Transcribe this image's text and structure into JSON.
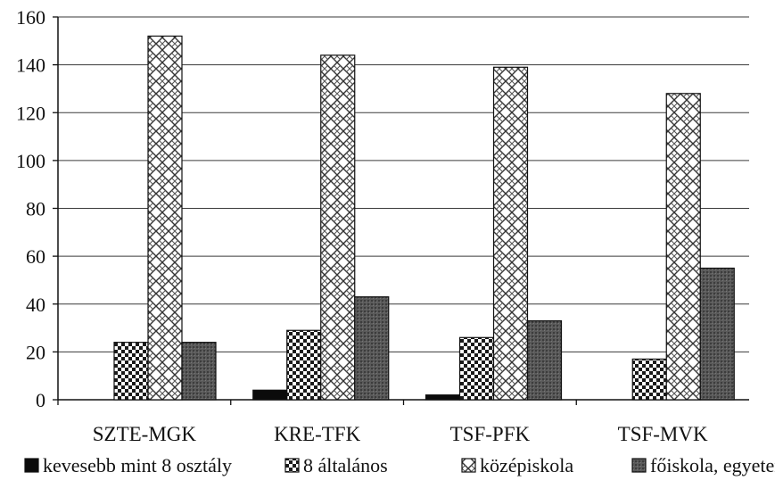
{
  "chart_data": {
    "type": "bar",
    "title": "",
    "xlabel": "",
    "ylabel": "",
    "ylim": [
      0,
      160
    ],
    "yticks": [
      0,
      20,
      40,
      60,
      80,
      100,
      120,
      140,
      160
    ],
    "grid": "horizontal",
    "legend_position": "bottom",
    "categories": [
      "SZTE-MGK",
      "KRE-TFK",
      "TSF-PFK",
      "TSF-MVK"
    ],
    "series": [
      {
        "name": "kevesebb mint 8 osztály",
        "values": [
          0,
          4,
          2,
          0
        ],
        "pattern": "solid-black"
      },
      {
        "name": "8 általános",
        "values": [
          24,
          29,
          26,
          17
        ],
        "pattern": "checker"
      },
      {
        "name": "középiskola",
        "values": [
          152,
          144,
          139,
          128
        ],
        "pattern": "zigzag"
      },
      {
        "name": "főiskola, egyetem",
        "values": [
          24,
          43,
          33,
          55
        ],
        "pattern": "dark-stipple"
      }
    ]
  }
}
